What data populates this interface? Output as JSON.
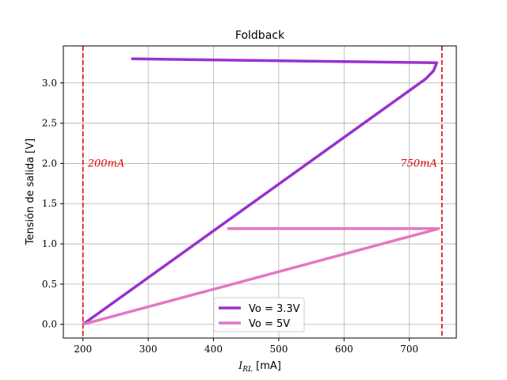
{
  "chart_data": {
    "type": "line",
    "title": "Foldback",
    "xlabel_main": "I",
    "xlabel_sub": "RL",
    "xlabel_unit": " [mA]",
    "ylabel": "Tensión de salida [V]",
    "xlim": [
      170,
      772
    ],
    "ylim": [
      -0.17,
      3.46
    ],
    "xticks": [
      200,
      300,
      400,
      500,
      600,
      700
    ],
    "yticks": [
      0.0,
      0.5,
      1.0,
      1.5,
      2.0,
      2.5,
      3.0
    ],
    "ytick_labels": [
      "0.0",
      "0.5",
      "1.0",
      "1.5",
      "2.0",
      "2.5",
      "3.0"
    ],
    "grid": true,
    "legend_position": "lower-center",
    "series": [
      {
        "name": "Vo = 3.3V",
        "color": "#9932cc",
        "x": [
          274,
          742,
          737,
          725,
          200
        ],
        "y": [
          3.3,
          3.25,
          3.15,
          3.05,
          0.0
        ]
      },
      {
        "name": "Vo = 5V",
        "color": "#e377c2",
        "x": [
          421,
          745,
          200
        ],
        "y": [
          1.19,
          1.19,
          0.0
        ]
      }
    ],
    "vlines": [
      {
        "x": 200,
        "label": "200mA",
        "color": "#e00000"
      },
      {
        "x": 750,
        "label": "750mA",
        "color": "#e00000"
      }
    ]
  }
}
